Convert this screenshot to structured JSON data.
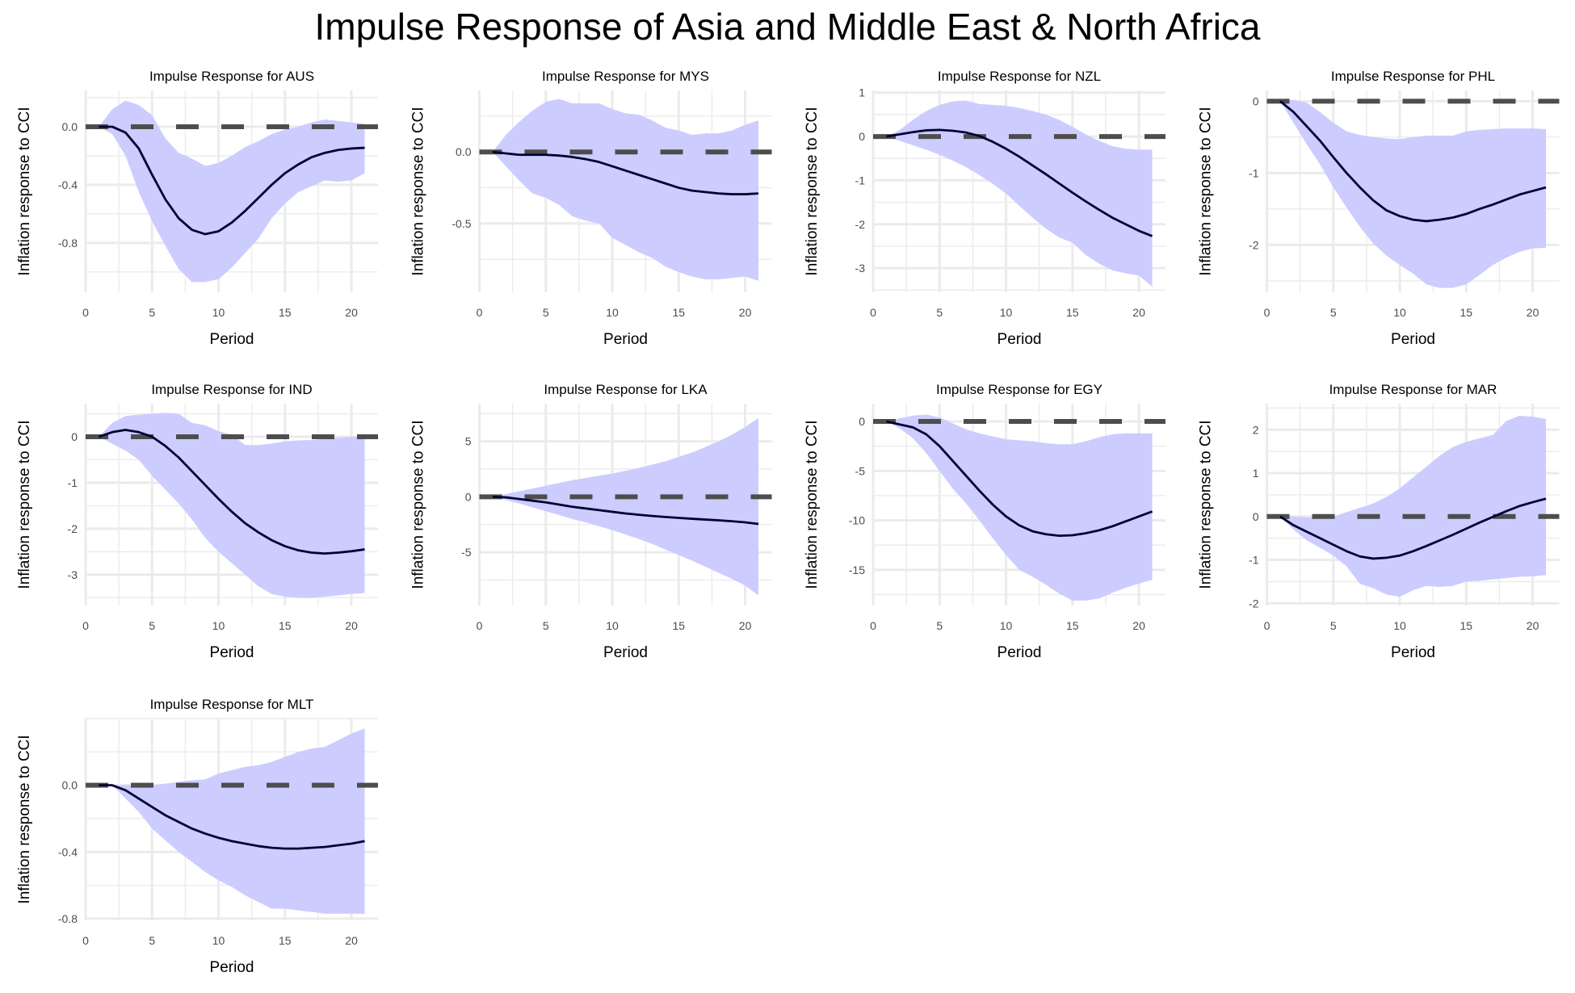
{
  "title": "Impulse Response of Asia and Middle East & North Africa",
  "chart_data": [
    {
      "type": "area",
      "title": "Impulse Response for AUS",
      "xlabel": "Period",
      "ylabel": "Inflation response to CCI",
      "xlim": [
        0,
        22
      ],
      "ylim": [
        -1.14,
        0.25
      ],
      "xticks": [
        0,
        5,
        10,
        15,
        20
      ],
      "yticks": [
        {
          "v": 0,
          "label": "0.0"
        },
        {
          "v": -0.4,
          "label": "-0.4"
        },
        {
          "v": -0.8,
          "label": "-0.8"
        }
      ],
      "yminor": 0.2,
      "x": [
        1,
        2,
        3,
        4,
        5,
        6,
        7,
        8,
        9,
        10,
        11,
        12,
        13,
        14,
        15,
        16,
        17,
        18,
        19,
        20,
        21
      ],
      "irf": [
        0,
        0,
        -0.04,
        -0.15,
        -0.33,
        -0.5,
        -0.63,
        -0.71,
        -0.74,
        -0.72,
        -0.66,
        -0.58,
        -0.49,
        -0.4,
        -0.32,
        -0.26,
        -0.21,
        -0.18,
        -0.16,
        -0.15,
        -0.145
      ],
      "upper": [
        0,
        0.12,
        0.18,
        0.15,
        0.08,
        -0.08,
        -0.18,
        -0.22,
        -0.27,
        -0.25,
        -0.2,
        -0.14,
        -0.1,
        -0.05,
        -0.02,
        0,
        0.03,
        0.05,
        0.04,
        0.03,
        0.02
      ],
      "lower": [
        0,
        -0.05,
        -0.2,
        -0.45,
        -0.65,
        -0.82,
        -0.98,
        -1.07,
        -1.07,
        -1.05,
        -0.97,
        -0.87,
        -0.77,
        -0.63,
        -0.53,
        -0.45,
        -0.41,
        -0.37,
        -0.38,
        -0.37,
        -0.32
      ]
    },
    {
      "type": "area",
      "title": "Impulse Response for MYS",
      "xlabel": "Period",
      "ylabel": "Inflation response to CCI",
      "xlim": [
        0,
        22
      ],
      "ylim": [
        -0.98,
        0.43
      ],
      "xticks": [
        0,
        5,
        10,
        15,
        20
      ],
      "yticks": [
        {
          "v": 0,
          "label": "0.0"
        },
        {
          "v": -0.5,
          "label": "-0.5"
        }
      ],
      "yminor": 0.25,
      "x": [
        1,
        2,
        3,
        4,
        5,
        6,
        7,
        8,
        9,
        10,
        11,
        12,
        13,
        14,
        15,
        16,
        17,
        18,
        19,
        20,
        21
      ],
      "irf": [
        0,
        -0.01,
        -0.02,
        -0.02,
        -0.02,
        -0.025,
        -0.035,
        -0.05,
        -0.07,
        -0.1,
        -0.13,
        -0.16,
        -0.19,
        -0.22,
        -0.25,
        -0.27,
        -0.28,
        -0.29,
        -0.295,
        -0.295,
        -0.29
      ],
      "upper": [
        0,
        0.12,
        0.21,
        0.29,
        0.35,
        0.37,
        0.34,
        0.34,
        0.34,
        0.3,
        0.27,
        0.26,
        0.22,
        0.17,
        0.15,
        0.12,
        0.13,
        0.13,
        0.15,
        0.19,
        0.22
      ],
      "lower": [
        0,
        -0.1,
        -0.2,
        -0.29,
        -0.32,
        -0.37,
        -0.45,
        -0.48,
        -0.5,
        -0.6,
        -0.65,
        -0.7,
        -0.74,
        -0.8,
        -0.84,
        -0.87,
        -0.89,
        -0.89,
        -0.88,
        -0.87,
        -0.9
      ]
    },
    {
      "type": "area",
      "title": "Impulse Response for NZL",
      "xlabel": "Period",
      "ylabel": "Inflation response to CCI",
      "xlim": [
        0,
        22
      ],
      "ylim": [
        -3.55,
        1.05
      ],
      "xticks": [
        0,
        5,
        10,
        15,
        20
      ],
      "yticks": [
        {
          "v": 1,
          "label": "1"
        },
        {
          "v": 0,
          "label": "0"
        },
        {
          "v": -1,
          "label": "-1"
        },
        {
          "v": -2,
          "label": "-2"
        },
        {
          "v": -3,
          "label": "-3"
        }
      ],
      "yminor": 0.5,
      "x": [
        1,
        2,
        3,
        4,
        5,
        6,
        7,
        8,
        9,
        10,
        11,
        12,
        13,
        14,
        15,
        16,
        17,
        18,
        19,
        20,
        21
      ],
      "irf": [
        0,
        0.05,
        0.1,
        0.14,
        0.15,
        0.13,
        0.09,
        0.01,
        -0.12,
        -0.28,
        -0.46,
        -0.66,
        -0.86,
        -1.07,
        -1.28,
        -1.48,
        -1.67,
        -1.85,
        -2.0,
        -2.15,
        -2.27
      ],
      "upper": [
        0,
        0.15,
        0.38,
        0.58,
        0.72,
        0.8,
        0.82,
        0.74,
        0.72,
        0.7,
        0.65,
        0.58,
        0.5,
        0.38,
        0.22,
        0.05,
        -0.1,
        -0.22,
        -0.28,
        -0.3,
        -0.3
      ],
      "lower": [
        0,
        -0.1,
        -0.2,
        -0.3,
        -0.42,
        -0.55,
        -0.7,
        -0.88,
        -1.08,
        -1.3,
        -1.58,
        -1.85,
        -2.1,
        -2.3,
        -2.42,
        -2.7,
        -2.9,
        -3.05,
        -3.12,
        -3.17,
        -3.42
      ]
    },
    {
      "type": "area",
      "title": "Impulse Response for PHL",
      "xlabel": "Period",
      "ylabel": "Inflation response to CCI",
      "xlim": [
        0,
        22
      ],
      "ylim": [
        -2.66,
        0.15
      ],
      "xticks": [
        0,
        5,
        10,
        15,
        20
      ],
      "yticks": [
        {
          "v": 0,
          "label": "0"
        },
        {
          "v": -1,
          "label": "-1"
        },
        {
          "v": -2,
          "label": "-2"
        }
      ],
      "yminor": 0.5,
      "x": [
        1,
        2,
        3,
        4,
        5,
        6,
        7,
        8,
        9,
        10,
        11,
        12,
        13,
        14,
        15,
        16,
        17,
        18,
        19,
        20,
        21
      ],
      "irf": [
        0,
        -0.15,
        -0.35,
        -0.55,
        -0.78,
        -1.0,
        -1.2,
        -1.38,
        -1.52,
        -1.6,
        -1.65,
        -1.67,
        -1.65,
        -1.62,
        -1.57,
        -1.5,
        -1.44,
        -1.37,
        -1.3,
        -1.25,
        -1.2
      ],
      "upper": [
        0,
        0.02,
        -0.02,
        -0.15,
        -0.3,
        -0.42,
        -0.47,
        -0.5,
        -0.52,
        -0.53,
        -0.5,
        -0.48,
        -0.48,
        -0.48,
        -0.42,
        -0.4,
        -0.39,
        -0.38,
        -0.38,
        -0.38,
        -0.39
      ],
      "lower": [
        0,
        -0.3,
        -0.6,
        -0.88,
        -1.2,
        -1.48,
        -1.75,
        -1.98,
        -2.15,
        -2.28,
        -2.4,
        -2.55,
        -2.6,
        -2.6,
        -2.55,
        -2.42,
        -2.28,
        -2.18,
        -2.1,
        -2.05,
        -2.04
      ]
    },
    {
      "type": "area",
      "title": "Impulse Response for IND",
      "xlabel": "Period",
      "ylabel": "Inflation response to CCI",
      "xlim": [
        0,
        22
      ],
      "ylim": [
        -3.67,
        0.72
      ],
      "xticks": [
        0,
        5,
        10,
        15,
        20
      ],
      "yticks": [
        {
          "v": 0,
          "label": "0"
        },
        {
          "v": -1,
          "label": "-1"
        },
        {
          "v": -2,
          "label": "-2"
        },
        {
          "v": -3,
          "label": "-3"
        }
      ],
      "yminor": 0.5,
      "x": [
        1,
        2,
        3,
        4,
        5,
        6,
        7,
        8,
        9,
        10,
        11,
        12,
        13,
        14,
        15,
        16,
        17,
        18,
        19,
        20,
        21
      ],
      "irf": [
        0,
        0.1,
        0.15,
        0.1,
        0,
        -0.2,
        -0.45,
        -0.75,
        -1.05,
        -1.35,
        -1.63,
        -1.88,
        -2.08,
        -2.25,
        -2.38,
        -2.47,
        -2.52,
        -2.54,
        -2.52,
        -2.49,
        -2.45
      ],
      "upper": [
        0,
        0.3,
        0.45,
        0.48,
        0.5,
        0.52,
        0.5,
        0.3,
        0.25,
        0.12,
        0.05,
        -0.18,
        -0.18,
        -0.15,
        -0.1,
        -0.08,
        -0.07,
        -0.05,
        -0.02,
        0,
        0
      ],
      "lower": [
        0,
        -0.15,
        -0.3,
        -0.5,
        -0.85,
        -1.15,
        -1.45,
        -1.8,
        -2.2,
        -2.5,
        -2.75,
        -3.0,
        -3.25,
        -3.42,
        -3.48,
        -3.5,
        -3.5,
        -3.48,
        -3.45,
        -3.42,
        -3.4
      ]
    },
    {
      "type": "area",
      "title": "Impulse Response for LKA",
      "xlabel": "Period",
      "ylabel": "Inflation response to CCI",
      "xlim": [
        0,
        22
      ],
      "ylim": [
        -9.8,
        8.4
      ],
      "xticks": [
        0,
        5,
        10,
        15,
        20
      ],
      "yticks": [
        {
          "v": 5,
          "label": "5"
        },
        {
          "v": 0,
          "label": "0"
        },
        {
          "v": -5,
          "label": "-5"
        }
      ],
      "yminor": 2.5,
      "x": [
        1,
        2,
        3,
        4,
        5,
        6,
        7,
        8,
        9,
        10,
        11,
        12,
        13,
        14,
        15,
        16,
        17,
        18,
        19,
        20,
        21
      ],
      "irf": [
        0,
        -0.05,
        -0.2,
        -0.35,
        -0.5,
        -0.7,
        -0.9,
        -1.05,
        -1.2,
        -1.35,
        -1.5,
        -1.62,
        -1.73,
        -1.82,
        -1.9,
        -1.98,
        -2.05,
        -2.12,
        -2.2,
        -2.3,
        -2.45
      ],
      "upper": [
        0,
        0.25,
        0.5,
        0.75,
        1.0,
        1.25,
        1.5,
        1.7,
        1.9,
        2.1,
        2.35,
        2.6,
        2.9,
        3.2,
        3.6,
        4.0,
        4.5,
        5.0,
        5.6,
        6.3,
        7.1
      ],
      "lower": [
        0,
        -0.3,
        -0.6,
        -0.95,
        -1.3,
        -1.65,
        -2.0,
        -2.3,
        -2.65,
        -3.0,
        -3.4,
        -3.8,
        -4.25,
        -4.75,
        -5.25,
        -5.75,
        -6.3,
        -6.85,
        -7.4,
        -8.0,
        -8.9
      ]
    },
    {
      "type": "area",
      "title": "Impulse Response for EGY",
      "xlabel": "Period",
      "ylabel": "Inflation response to CCI",
      "xlim": [
        0,
        22
      ],
      "ylim": [
        -18.6,
        1.8
      ],
      "xticks": [
        0,
        5,
        10,
        15,
        20
      ],
      "yticks": [
        {
          "v": 0,
          "label": "0"
        },
        {
          "v": -5,
          "label": "-5"
        },
        {
          "v": -10,
          "label": "-10"
        },
        {
          "v": -15,
          "label": "-15"
        }
      ],
      "yminor": 2.5,
      "x": [
        1,
        2,
        3,
        4,
        5,
        6,
        7,
        8,
        9,
        10,
        11,
        12,
        13,
        14,
        15,
        16,
        17,
        18,
        19,
        20,
        21
      ],
      "irf": [
        0,
        -0.3,
        -0.6,
        -1.3,
        -2.5,
        -4.0,
        -5.5,
        -7.0,
        -8.4,
        -9.6,
        -10.5,
        -11.1,
        -11.4,
        -11.55,
        -11.5,
        -11.3,
        -11.0,
        -10.6,
        -10.1,
        -9.6,
        -9.1
      ],
      "upper": [
        0,
        0.3,
        0.6,
        0.7,
        0.4,
        -0.2,
        -0.8,
        -1.2,
        -1.5,
        -1.8,
        -1.9,
        -2.0,
        -2.2,
        -2.3,
        -2.3,
        -2.0,
        -1.6,
        -1.3,
        -1.2,
        -1.2,
        -1.2
      ],
      "lower": [
        0,
        -0.7,
        -1.7,
        -3.2,
        -5.0,
        -6.8,
        -8.3,
        -10.0,
        -11.8,
        -13.5,
        -15.0,
        -15.7,
        -16.5,
        -17.4,
        -18.1,
        -18.1,
        -17.9,
        -17.3,
        -16.8,
        -16.4,
        -16.0
      ]
    },
    {
      "type": "area",
      "title": "Impulse Response for MAR",
      "xlabel": "Period",
      "ylabel": "Inflation response to CCI",
      "xlim": [
        0,
        22
      ],
      "ylim": [
        -2.05,
        2.6
      ],
      "xticks": [
        0,
        5,
        10,
        15,
        20
      ],
      "yticks": [
        {
          "v": 2,
          "label": "2"
        },
        {
          "v": 1,
          "label": "1"
        },
        {
          "v": 0,
          "label": "0"
        },
        {
          "v": -1,
          "label": "-1"
        },
        {
          "v": -2,
          "label": "-2"
        }
      ],
      "yminor": 0.5,
      "x": [
        1,
        2,
        3,
        4,
        5,
        6,
        7,
        8,
        9,
        10,
        11,
        12,
        13,
        14,
        15,
        16,
        17,
        18,
        19,
        20,
        21
      ],
      "irf": [
        0,
        -0.2,
        -0.35,
        -0.5,
        -0.65,
        -0.8,
        -0.92,
        -0.97,
        -0.95,
        -0.9,
        -0.8,
        -0.68,
        -0.55,
        -0.42,
        -0.28,
        -0.14,
        -0.01,
        0.12,
        0.24,
        0.33,
        0.41
      ],
      "upper": [
        0,
        0,
        -0.02,
        -0.03,
        0,
        0.1,
        0.2,
        0.3,
        0.45,
        0.65,
        0.9,
        1.15,
        1.4,
        1.6,
        1.72,
        1.8,
        1.88,
        2.2,
        2.32,
        2.3,
        2.25
      ],
      "lower": [
        0,
        -0.3,
        -0.55,
        -0.72,
        -0.9,
        -1.15,
        -1.55,
        -1.65,
        -1.8,
        -1.85,
        -1.7,
        -1.6,
        -1.62,
        -1.6,
        -1.5,
        -1.48,
        -1.45,
        -1.42,
        -1.39,
        -1.38,
        -1.35
      ]
    },
    {
      "type": "area",
      "title": "Impulse Response for MLT",
      "xlabel": "Period",
      "ylabel": "Inflation response to CCI",
      "xlim": [
        0,
        22
      ],
      "ylim": [
        -0.81,
        0.4
      ],
      "xticks": [
        0,
        5,
        10,
        15,
        20
      ],
      "yticks": [
        {
          "v": 0,
          "label": "0.0"
        },
        {
          "v": -0.4,
          "label": "-0.4"
        },
        {
          "v": -0.8,
          "label": "-0.8"
        }
      ],
      "yminor": 0.2,
      "x": [
        1,
        2,
        3,
        4,
        5,
        6,
        7,
        8,
        9,
        10,
        11,
        12,
        13,
        14,
        15,
        16,
        17,
        18,
        19,
        20,
        21
      ],
      "irf": [
        0,
        0,
        -0.03,
        -0.08,
        -0.13,
        -0.18,
        -0.22,
        -0.26,
        -0.29,
        -0.315,
        -0.335,
        -0.35,
        -0.365,
        -0.375,
        -0.38,
        -0.38,
        -0.375,
        -0.37,
        -0.36,
        -0.35,
        -0.335
      ],
      "upper": [
        0,
        0,
        0,
        0,
        0,
        0.01,
        0.02,
        0.03,
        0.035,
        0.07,
        0.09,
        0.11,
        0.12,
        0.14,
        0.17,
        0.2,
        0.22,
        0.23,
        0.27,
        0.31,
        0.34
      ],
      "lower": [
        0,
        0,
        -0.08,
        -0.16,
        -0.26,
        -0.33,
        -0.4,
        -0.46,
        -0.52,
        -0.57,
        -0.61,
        -0.66,
        -0.7,
        -0.74,
        -0.74,
        -0.75,
        -0.76,
        -0.77,
        -0.77,
        -0.77,
        -0.77
      ]
    }
  ],
  "colors": {
    "ribbon": "#ccccff",
    "irf_line": "#000033",
    "zero_line": "#4d4d4d",
    "grid": "#ebebeb",
    "tick_text": "#4d4d4d"
  }
}
